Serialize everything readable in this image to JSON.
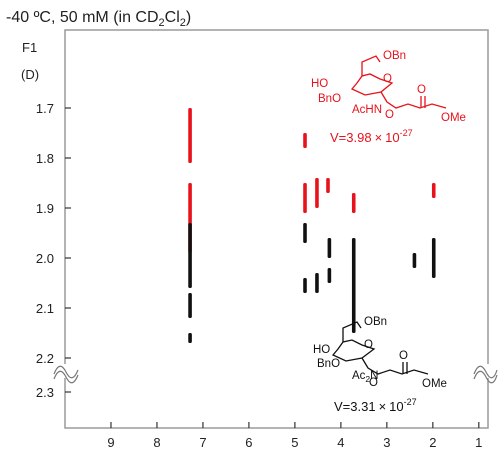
{
  "chart_data": {
    "type": "scatter",
    "title": {
      "pre": "-40 ºC, 50 mM (in CD",
      "sub1": "2",
      "mid": "Cl",
      "sub2": "2",
      "post": ")"
    },
    "y_axis_title": "F1",
    "y_axis_unit": "(D)",
    "xlim": [
      10,
      0.8
    ],
    "x_ticks": [
      "9",
      "8",
      "7",
      "6",
      "5",
      "4",
      "3",
      "2",
      "1"
    ],
    "y_ticks": [
      "1.7",
      "1.8",
      "1.9",
      "2.0",
      "2.1",
      "2.2",
      "2.3"
    ],
    "axis_break": true,
    "series": [
      {
        "name": "",
        "color": "#e8121b",
        "diffusion_value": "V=3.98",
        "exponent": "-27",
        "times": "×",
        "ten": "10",
        "structure": {
          "obn": "OBn",
          "ho": "HO",
          "bno": "BnO",
          "o_ring": "O",
          "achn": "AcHN",
          "o_link": "O",
          "o_carbonyl": "O",
          "ome": "OMe"
        },
        "peaks": [
          {
            "x": 7.28,
            "y": [
              1.7,
              1.81
            ]
          },
          {
            "x": 7.28,
            "y": [
              1.85,
              1.99
            ]
          },
          {
            "x": 4.78,
            "y": [
              1.75,
              1.78
            ]
          },
          {
            "x": 4.78,
            "y": [
              1.85,
              1.91
            ]
          },
          {
            "x": 4.52,
            "y": [
              1.84,
              1.9
            ]
          },
          {
            "x": 4.28,
            "y": [
              1.84,
              1.87
            ]
          },
          {
            "x": 3.72,
            "y": [
              1.87,
              1.91
            ]
          },
          {
            "x": 1.98,
            "y": [
              1.85,
              1.88
            ]
          }
        ]
      },
      {
        "name": "",
        "color": "#111111",
        "diffusion_value": "V=3.31",
        "exponent": "-27",
        "times": "×",
        "ten": "10",
        "structure": {
          "obn": "OBn",
          "ho": "HO",
          "bno": "BnO",
          "o_ring": "O",
          "ac2n": "Ac",
          "ac2n_sub": "2",
          "ac2n_n": "N",
          "o_link": "O",
          "o_carbonyl": "O",
          "ome": "OMe"
        },
        "peaks": [
          {
            "x": 7.28,
            "y": [
              1.93,
              2.06
            ]
          },
          {
            "x": 7.28,
            "y": [
              2.07,
              2.12
            ]
          },
          {
            "x": 7.28,
            "y": [
              2.15,
              2.17
            ]
          },
          {
            "x": 4.78,
            "y": [
              1.93,
              1.97
            ]
          },
          {
            "x": 4.78,
            "y": [
              2.04,
              2.07
            ]
          },
          {
            "x": 4.52,
            "y": [
              2.03,
              2.07
            ]
          },
          {
            "x": 4.25,
            "y": [
              1.96,
              2.0
            ]
          },
          {
            "x": 4.25,
            "y": [
              2.02,
              2.05
            ]
          },
          {
            "x": 3.72,
            "y": [
              1.96,
              2.15
            ]
          },
          {
            "x": 2.4,
            "y": [
              1.99,
              2.02
            ]
          },
          {
            "x": 1.98,
            "y": [
              1.96,
              2.04
            ]
          }
        ]
      }
    ]
  }
}
